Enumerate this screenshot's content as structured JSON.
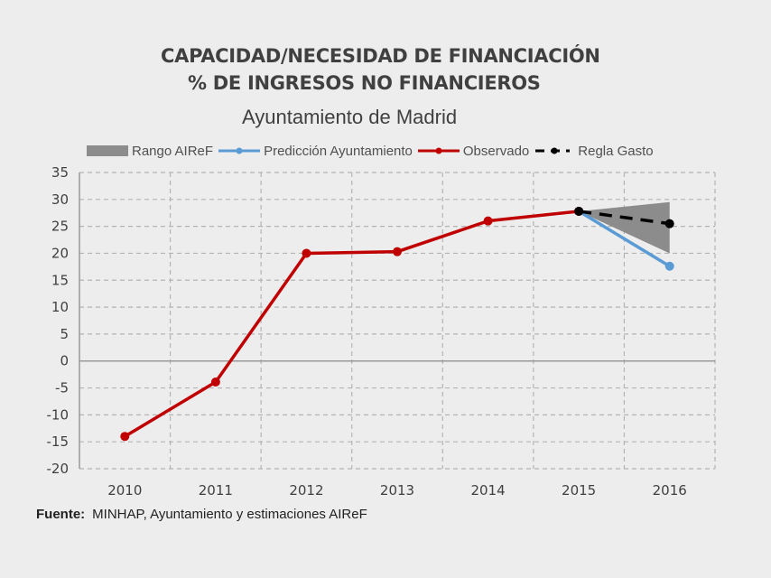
{
  "chart_data": {
    "type": "line",
    "title": "CAPACIDAD/NECESIDAD DE FINANCIACIÓN",
    "title_line2": "% DE INGRESOS NO FINANCIEROS",
    "subtitle": "Ayuntamiento de Madrid",
    "xlabel": "",
    "ylabel": "",
    "categories": [
      "2010",
      "2011",
      "2012",
      "2013",
      "2014",
      "2015",
      "2016"
    ],
    "ylim": [
      -20,
      35
    ],
    "yticks": [
      35,
      30,
      25,
      20,
      15,
      10,
      5,
      0,
      -5,
      -10,
      -15,
      -20
    ],
    "grid": true,
    "legend_position": "top",
    "series": [
      {
        "name": "Rango AIReF",
        "kind": "range-area",
        "color": "#8c8c8c",
        "points": [
          {
            "x": "2015",
            "low": 27.8,
            "high": 27.8
          },
          {
            "x": "2016",
            "low": 20.0,
            "high": 29.5
          }
        ]
      },
      {
        "name": "Predicción Ayuntamiento",
        "kind": "line",
        "color": "#5b9bd5",
        "points": [
          {
            "x": "2015",
            "y": 27.8
          },
          {
            "x": "2016",
            "y": 17.6
          }
        ]
      },
      {
        "name": "Observado",
        "kind": "line",
        "color": "#c00000",
        "points": [
          {
            "x": "2010",
            "y": -14.0
          },
          {
            "x": "2011",
            "y": -3.9
          },
          {
            "x": "2012",
            "y": 20.0
          },
          {
            "x": "2013",
            "y": 20.3
          },
          {
            "x": "2014",
            "y": 26.0
          },
          {
            "x": "2015",
            "y": 27.8
          }
        ]
      },
      {
        "name": "Regla Gasto",
        "kind": "dashed-line",
        "color": "#000000",
        "points": [
          {
            "x": "2015",
            "y": 27.8
          },
          {
            "x": "2016",
            "y": 25.5
          }
        ]
      }
    ]
  },
  "source": {
    "label": "Fuente:",
    "text": "MINHAP, Ayuntamiento y estimaciones AIReF"
  }
}
